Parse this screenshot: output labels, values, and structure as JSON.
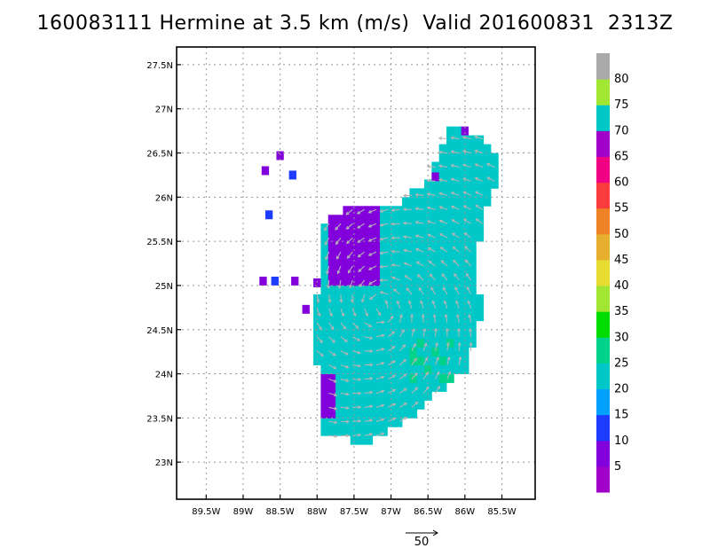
{
  "title": "160083111 Hermine at 3.5 km (m/s)  Valid 201600831  2313Z",
  "chart_data": {
    "type": "vector-field",
    "x_tick_labels": [
      "89.5W",
      "89W",
      "88.5W",
      "88W",
      "87.5W",
      "87W",
      "86.5W",
      "86W",
      "85.5W"
    ],
    "x_ticks": [
      -89.5,
      -89,
      -88.5,
      -88,
      -87.5,
      -87,
      -86.5,
      -86,
      -85.5
    ],
    "y_tick_labels": [
      "23N",
      "23.5N",
      "24N",
      "24.5N",
      "25N",
      "25.5N",
      "26N",
      "26.5N",
      "27N",
      "27.5N"
    ],
    "y_ticks": [
      23,
      23.5,
      24,
      24.5,
      25,
      25.5,
      26,
      26.5,
      27,
      27.5
    ],
    "xlim": [
      -89.9,
      -85.05
    ],
    "ylim": [
      22.58,
      27.7
    ],
    "grid": true,
    "colorbar": {
      "labels": [
        "5",
        "10",
        "15",
        "20",
        "25",
        "30",
        "35",
        "40",
        "45",
        "50",
        "55",
        "60",
        "65",
        "70",
        "75",
        "80"
      ],
      "colors": [
        "#a000c8",
        "#8200dc",
        "#1e3cff",
        "#00a0ff",
        "#00c8c8",
        "#00d28c",
        "#00dc00",
        "#a0e632",
        "#e6dc32",
        "#e6af2d",
        "#f08228",
        "#fa3c3c",
        "#f00082",
        "#a000c8",
        "#00c8c8",
        "#a0e632",
        "#aaaaaa"
      ]
    },
    "reference_vector": {
      "label": "50",
      "speed": 50
    }
  }
}
